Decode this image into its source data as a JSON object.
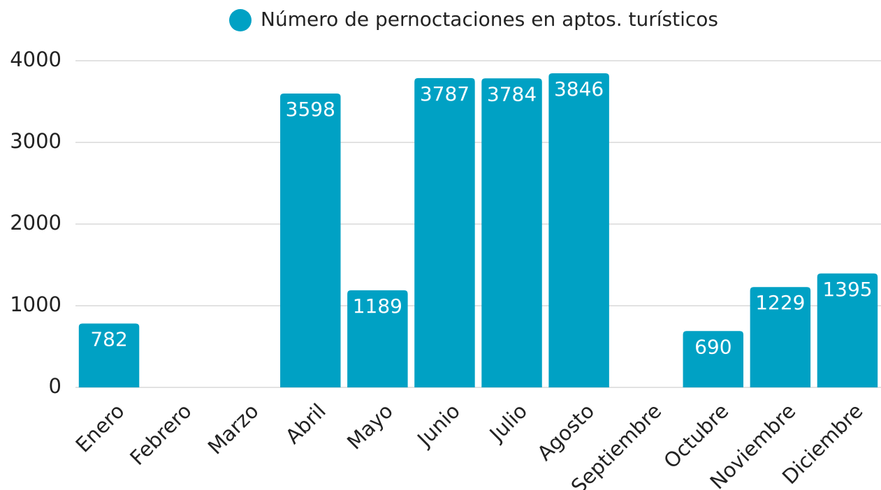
{
  "chart_data": {
    "type": "bar",
    "legend": "Número de pernoctaciones en aptos. turísticos",
    "categories": [
      "Enero",
      "Febrero",
      "Marzo",
      "Abril",
      "Mayo",
      "Junio",
      "Julio",
      "Agosto",
      "Septiembre",
      "Octubre",
      "Noviembre",
      "Diciembre"
    ],
    "values": [
      782,
      null,
      null,
      3598,
      1189,
      3787,
      3784,
      3846,
      null,
      690,
      1229,
      1395
    ],
    "color": "#00a1c4",
    "ylim": [
      0,
      4000
    ],
    "yticks": [
      0,
      1000,
      2000,
      3000,
      4000
    ],
    "grid": true
  }
}
